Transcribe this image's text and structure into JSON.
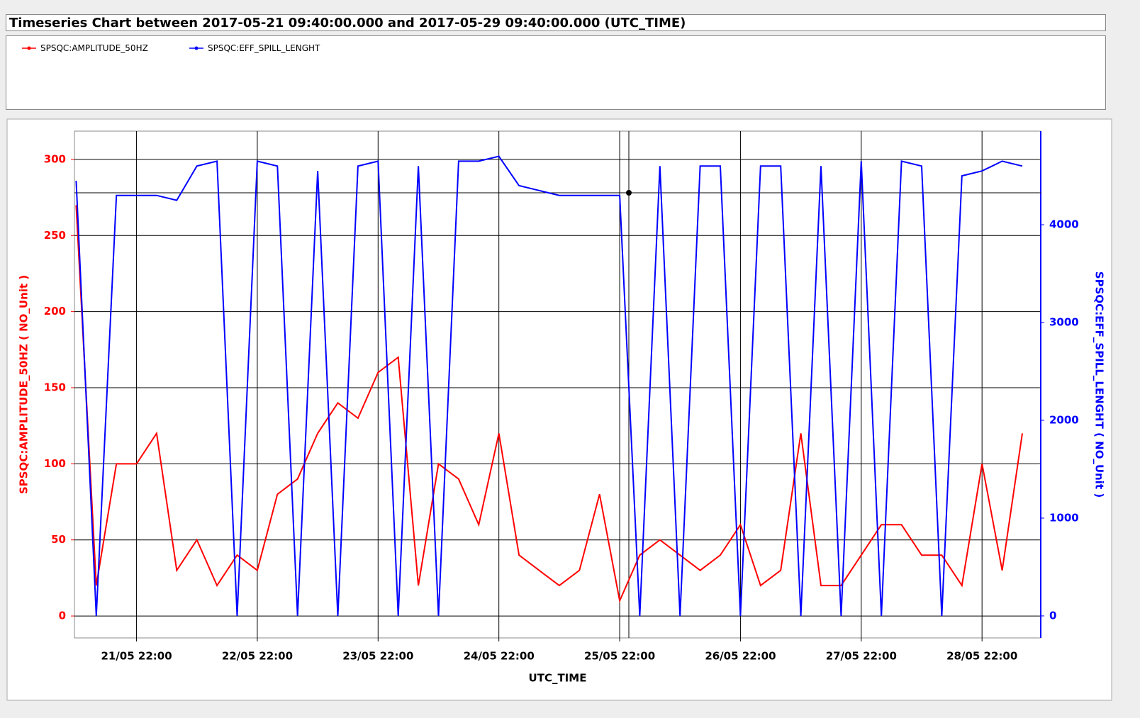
{
  "chart_data": {
    "type": "line",
    "title": "Timeseries Chart between 2017-05-21 09:40:00.000 and 2017-05-29 09:40:00.000 (UTC_TIME)",
    "x_label": "UTC_TIME",
    "y_label": "SPSQC:AMPLITUDE_50HZ ( NO_Unit )",
    "y2_label": "SPSQC:EFF_SPILL_LENGHT ( NO_Unit )",
    "xlim": [
      "2017-05-21 09:40:00.000",
      "2017-05-29 09:40:00.000"
    ],
    "xticks": [
      {
        "value": "2017-05-21 22:00",
        "label": "21/05 22:00"
      },
      {
        "value": "2017-05-22 22:00",
        "label": "22/05 22:00"
      },
      {
        "value": "2017-05-23 22:00",
        "label": "23/05 22:00"
      },
      {
        "value": "2017-05-24 22:00",
        "label": "24/05 22:00"
      },
      {
        "value": "2017-05-25 22:00",
        "label": "25/05 22:00"
      },
      {
        "value": "2017-05-26 22:00",
        "label": "26/05 22:00"
      },
      {
        "value": "2017-05-27 22:00",
        "label": "27/05 22:00"
      },
      {
        "value": "2017-05-28 22:00",
        "label": "28/05 22:00"
      }
    ],
    "ylim": [
      -14.4,
      318.6
    ],
    "yticks": [
      0,
      50,
      100,
      150,
      200,
      250,
      300
    ],
    "y2lim": [
      -225,
      4957
    ],
    "y2ticks": [
      0,
      1000,
      2000,
      3000,
      4000
    ],
    "grid": true,
    "x": [
      "2017-05-21 10:00",
      "2017-05-21 14:00",
      "2017-05-21 18:00",
      "2017-05-21 22:00",
      "2017-05-22 02:00",
      "2017-05-22 06:00",
      "2017-05-22 10:00",
      "2017-05-22 14:00",
      "2017-05-22 18:00",
      "2017-05-22 22:00",
      "2017-05-23 02:00",
      "2017-05-23 06:00",
      "2017-05-23 10:00",
      "2017-05-23 14:00",
      "2017-05-23 18:00",
      "2017-05-23 22:00",
      "2017-05-24 02:00",
      "2017-05-24 06:00",
      "2017-05-24 10:00",
      "2017-05-24 14:00",
      "2017-05-24 18:00",
      "2017-05-24 22:00",
      "2017-05-25 02:00",
      "2017-05-25 06:00",
      "2017-05-25 10:00",
      "2017-05-25 14:00",
      "2017-05-25 18:00",
      "2017-05-25 22:00",
      "2017-05-26 02:00",
      "2017-05-26 06:00",
      "2017-05-26 10:00",
      "2017-05-26 14:00",
      "2017-05-26 18:00",
      "2017-05-26 22:00",
      "2017-05-27 02:00",
      "2017-05-27 06:00",
      "2017-05-27 10:00",
      "2017-05-27 14:00",
      "2017-05-27 18:00",
      "2017-05-27 22:00",
      "2017-05-28 02:00",
      "2017-05-28 06:00",
      "2017-05-28 10:00",
      "2017-05-28 14:00",
      "2017-05-28 18:00",
      "2017-05-28 22:00",
      "2017-05-29 02:00",
      "2017-05-29 06:00"
    ],
    "series": [
      {
        "name": "SPSQC:AMPLITUDE_50HZ",
        "color": "#ff0000",
        "axis": "y",
        "values": [
          270,
          20,
          100,
          100,
          120,
          30,
          50,
          20,
          40,
          30,
          80,
          90,
          120,
          140,
          130,
          160,
          170,
          20,
          100,
          90,
          60,
          120,
          40,
          30,
          20,
          30,
          80,
          10,
          40,
          50,
          40,
          30,
          40,
          60,
          20,
          30,
          120,
          20,
          20,
          40,
          60,
          60,
          40,
          40,
          20,
          100,
          30,
          120
        ]
      },
      {
        "name": "SPSQC:EFF_SPILL_LENGHT",
        "color": "#0000ff",
        "axis": "y2",
        "values": [
          4450,
          0,
          4300,
          4300,
          4300,
          4250,
          4600,
          4650,
          0,
          4650,
          4600,
          0,
          4550,
          0,
          4600,
          4650,
          0,
          4600,
          0,
          4650,
          4650,
          4700,
          4400,
          4350,
          4300,
          4300,
          4300,
          4300,
          0,
          4600,
          0,
          4600,
          4600,
          0,
          4600,
          4600,
          0,
          4600,
          0,
          4650,
          0,
          4650,
          4600,
          0,
          4500,
          4550,
          4650,
          4600
        ]
      }
    ]
  }
}
